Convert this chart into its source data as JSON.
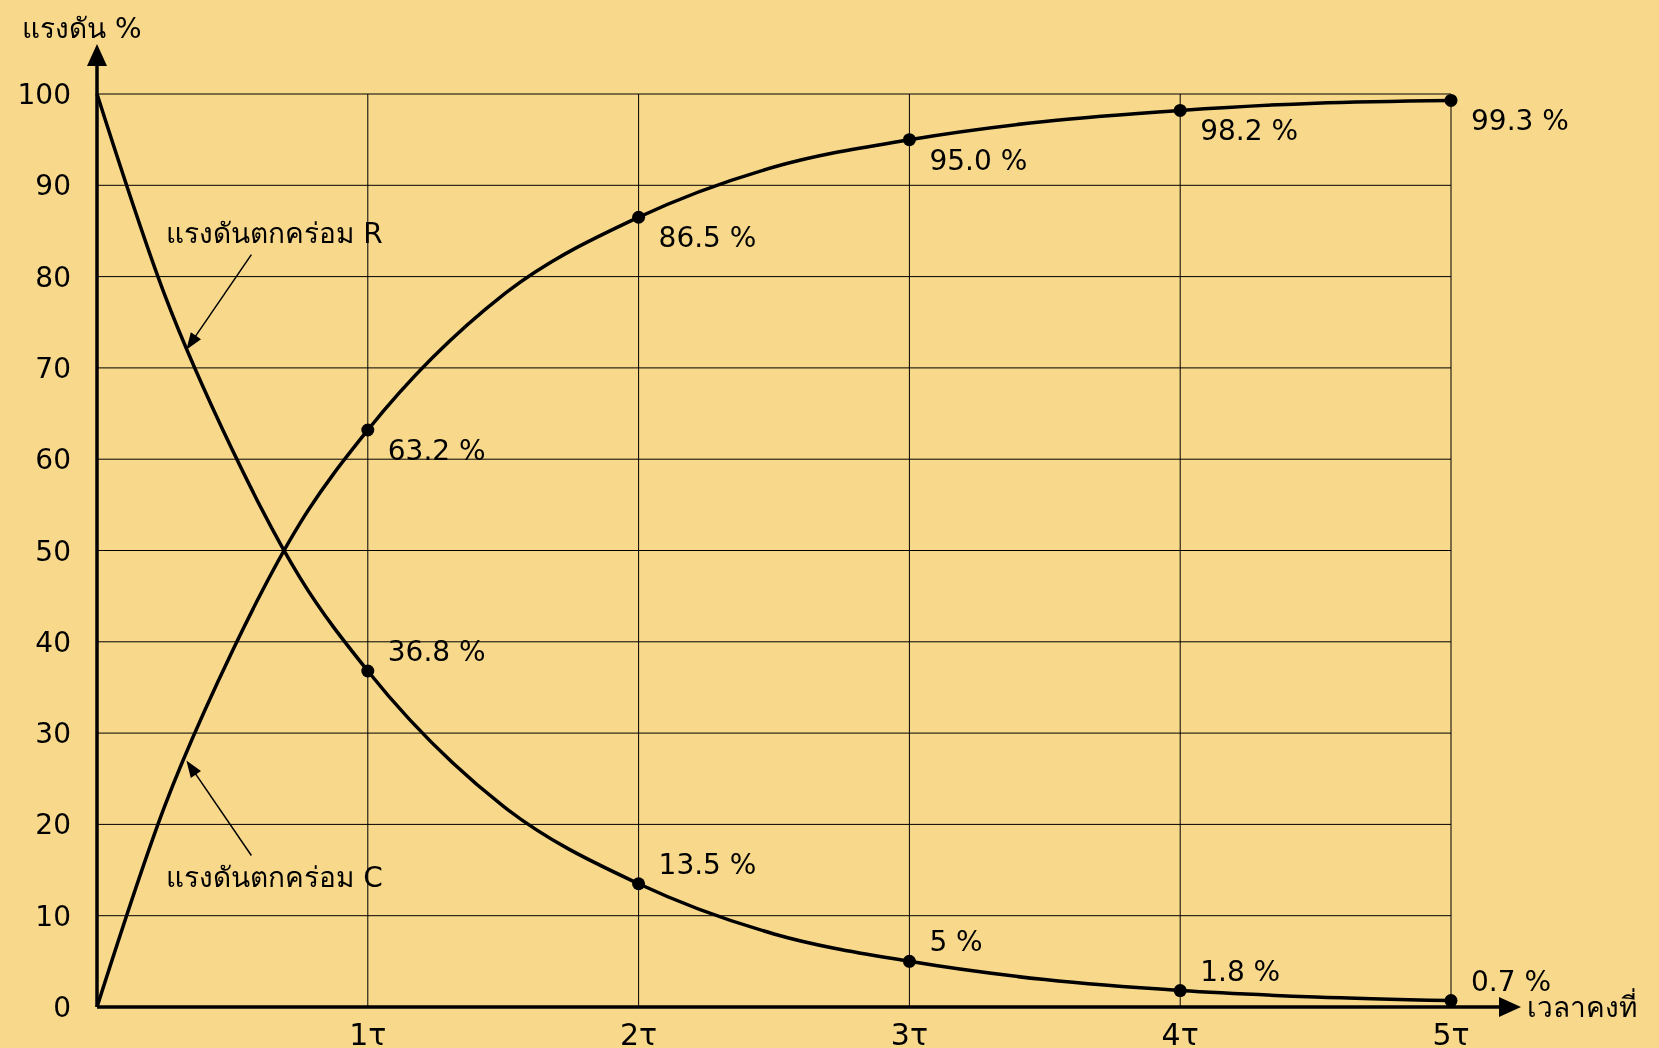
{
  "chart_data": {
    "type": "line",
    "xlabel": "เวลาคงที่",
    "ylabel": "แรงดัน %",
    "xlim": [
      0,
      5
    ],
    "ylim": [
      0,
      100
    ],
    "xticks": [
      {
        "value": 1,
        "label": "1τ"
      },
      {
        "value": 2,
        "label": "2τ"
      },
      {
        "value": 3,
        "label": "3τ"
      },
      {
        "value": 4,
        "label": "4τ"
      },
      {
        "value": 5,
        "label": "5τ"
      }
    ],
    "yticks": [
      0,
      10,
      20,
      30,
      40,
      50,
      60,
      70,
      80,
      90,
      100
    ],
    "grid": true,
    "line_style": "solid",
    "series": [
      {
        "type": "line",
        "color": "#000000",
        "marker": "none",
        "x": [
          0,
          0.25,
          0.5,
          0.75,
          1,
          1.5,
          2,
          2.5,
          3,
          3.5,
          4,
          4.5,
          5
        ],
        "values": [
          0,
          22,
          39,
          53,
          63.2,
          78,
          86.5,
          92,
          95,
          97,
          98.2,
          99,
          99.3
        ]
      },
      {
        "type": "line",
        "color": "#000000",
        "marker": "none",
        "x": [
          0,
          0.25,
          0.5,
          0.75,
          1,
          1.5,
          2,
          2.5,
          3,
          3.5,
          4,
          4.5,
          5
        ],
        "values": [
          100,
          78,
          61,
          47,
          36.8,
          22,
          13.5,
          8,
          5,
          3,
          1.8,
          1.1,
          0.7
        ]
      },
      {
        "type": "scatter",
        "color": "#000000",
        "marker": "circle",
        "x": [
          1,
          2,
          3,
          4,
          5
        ],
        "values": [
          63.2,
          86.5,
          95.0,
          98.2,
          99.3
        ],
        "value_labels": [
          "63.2 %",
          "86.5 %",
          "95.0 %",
          "98.2 %",
          "99.3 %"
        ]
      },
      {
        "type": "scatter",
        "color": "#000000",
        "marker": "circle",
        "x": [
          1,
          2,
          3,
          4,
          5
        ],
        "values": [
          36.8,
          13.5,
          5,
          1.8,
          0.7
        ],
        "value_labels": [
          "36.8 %",
          "13.5 %",
          "5 %",
          "1.8 %",
          "0.7 %"
        ]
      }
    ],
    "annotations": [
      {
        "text": "แรงดันตกคร่อม R",
        "x": 0.33,
        "y": 72
      },
      {
        "text": "แรงดันตกคร่อม C",
        "x": 0.33,
        "y": 27
      }
    ]
  }
}
